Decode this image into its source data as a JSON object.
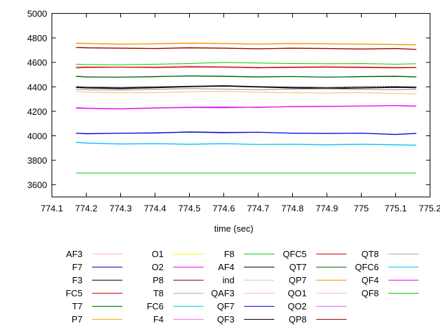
{
  "chart_data": {
    "type": "line",
    "title": "",
    "xlabel": "time (sec)",
    "ylabel": "",
    "xlim": [
      774.1,
      775.2
    ],
    "ylim": [
      3500,
      5000
    ],
    "grid": false,
    "legend_placement": "below",
    "x_ticks": [
      774.1,
      774.2,
      774.3,
      774.4,
      774.5,
      774.6,
      774.7,
      774.8,
      774.9,
      775,
      775.1,
      775.2
    ],
    "x_tick_labels": [
      "774.1",
      "774.2",
      "774.3",
      "774.4",
      "774.5",
      "774.6",
      "774.7",
      "774.8",
      "774.9",
      "775",
      "775.1",
      "775.2"
    ],
    "y_ticks": [
      3600,
      3800,
      4000,
      4200,
      4400,
      4600,
      4800,
      5000
    ],
    "y_tick_labels": [
      "3600",
      "3800",
      "4000",
      "4200",
      "4400",
      "4600",
      "4800",
      "5000"
    ],
    "x": [
      774.17,
      774.2,
      774.3,
      774.4,
      774.5,
      774.6,
      774.7,
      774.8,
      774.9,
      775.0,
      775.1,
      775.16
    ],
    "series": [
      {
        "name": "AF3",
        "color": "#ffb6b6",
        "values": [
          4570,
          4565,
          4560,
          4568,
          4572,
          4565,
          4560,
          4563,
          4570,
          4566,
          4562,
          4560
        ]
      },
      {
        "name": "F7",
        "color": "#0000b0",
        "values": [
          4020,
          4015,
          4020,
          4022,
          4030,
          4025,
          4028,
          4020,
          4018,
          4020,
          4010,
          4018
        ]
      },
      {
        "name": "F3",
        "color": "#000000",
        "values": [
          4395,
          4390,
          4385,
          4392,
          4400,
          4405,
          4398,
          4390,
          4385,
          4390,
          4395,
          4392
        ]
      },
      {
        "name": "FC5",
        "color": "#cc0000",
        "values": [
          4555,
          4558,
          4560,
          4556,
          4562,
          4560,
          4555,
          4558,
          4560,
          4557,
          4555,
          4556
        ]
      },
      {
        "name": "T7",
        "color": "#006400",
        "values": [
          4485,
          4480,
          4478,
          4482,
          4488,
          4485,
          4480,
          4483,
          4478,
          4482,
          4485,
          4480
        ]
      },
      {
        "name": "P7",
        "color": "#ffa500",
        "values": [
          4755,
          4752,
          4748,
          4750,
          4755,
          4752,
          4748,
          4752,
          4750,
          4748,
          4745,
          4742
        ]
      },
      {
        "name": "O1",
        "color": "#ffff00",
        "values": [
          4360,
          4355,
          4350,
          4352,
          4358,
          4362,
          4355,
          4350,
          4348,
          4352,
          4345,
          4340
        ]
      },
      {
        "name": "O2",
        "color": "#ee00ee",
        "values": [
          4230,
          4225,
          4220,
          4228,
          4232,
          4235,
          4230,
          4238,
          4240,
          4242,
          4245,
          4240
        ]
      },
      {
        "name": "P8",
        "color": "#8b0000",
        "values": [
          4720,
          4718,
          4715,
          4712,
          4718,
          4715,
          4710,
          4715,
          4712,
          4708,
          4712,
          4705
        ]
      },
      {
        "name": "T8",
        "color": "#b0b0b0",
        "values": [
          4380,
          4375,
          4372,
          4378,
          4385,
          4380,
          4375,
          4380,
          4382,
          4378,
          4375,
          4378
        ]
      },
      {
        "name": "FC6",
        "color": "#00cccc",
        "values": [
          3945,
          3940,
          3932,
          3935,
          3930,
          3935,
          3928,
          3930,
          3925,
          3930,
          3925,
          3922
        ]
      },
      {
        "name": "F4",
        "color": "#ff66ff",
        "values": [
          4225,
          4222,
          4218,
          4225,
          4230,
          4228,
          4232,
          4236,
          4238,
          4242,
          4245,
          4242
        ]
      },
      {
        "name": "F8",
        "color": "#00cc00",
        "values": [
          4585,
          4582,
          4580,
          4585,
          4590,
          4600,
          4595,
          4590,
          4588,
          4590,
          4585,
          4588
        ]
      },
      {
        "name": "AF4",
        "color": "#000000",
        "values": [
          4402,
          4398,
          4395,
          4400,
          4405,
          4410,
          4402,
          4398,
          4395,
          4400,
          4402,
          4400
        ]
      },
      {
        "name": "ind",
        "color": "#a0a0a0",
        "dashed": true,
        "values": [
          4402,
          4400,
          4398,
          4402,
          4406,
          4410,
          4404,
          4400,
          4398,
          4400,
          4403,
          4400
        ]
      },
      {
        "name": "QAF3",
        "color": "#ffb6c1",
        "values": [
          4568,
          4564,
          4560,
          4566,
          4570,
          4566,
          4562,
          4564,
          4568,
          4565,
          4562,
          4560
        ]
      },
      {
        "name": "QF7",
        "color": "#0000ff",
        "values": [
          4022,
          4018,
          4022,
          4025,
          4032,
          4028,
          4030,
          4022,
          4020,
          4022,
          4012,
          4020
        ]
      },
      {
        "name": "QF3",
        "color": "#000000",
        "values": [
          4398,
          4392,
          4388,
          4394,
          4402,
          4408,
          4400,
          4392,
          4388,
          4392,
          4398,
          4394
        ]
      },
      {
        "name": "QFC5",
        "color": "#cc0000",
        "values": [
          4557,
          4560,
          4562,
          4558,
          4564,
          4562,
          4557,
          4560,
          4562,
          4559,
          4557,
          4558
        ]
      },
      {
        "name": "QT7",
        "color": "#006400",
        "values": [
          4487,
          4482,
          4480,
          4484,
          4490,
          4487,
          4482,
          4485,
          4480,
          4484,
          4487,
          4482
        ]
      },
      {
        "name": "QP7",
        "color": "#ff8c00",
        "values": [
          4758,
          4755,
          4750,
          4752,
          4758,
          4755,
          4750,
          4755,
          4752,
          4750,
          4748,
          4745
        ]
      },
      {
        "name": "QO1",
        "color": "#ffb6c1",
        "values": [
          4362,
          4357,
          4352,
          4354,
          4360,
          4364,
          4357,
          4352,
          4350,
          4354,
          4347,
          4342
        ]
      },
      {
        "name": "QO2",
        "color": "#cc66ff",
        "values": [
          4232,
          4227,
          4222,
          4230,
          4234,
          4237,
          4232,
          4240,
          4242,
          4244,
          4247,
          4242
        ]
      },
      {
        "name": "QP8",
        "color": "#990000",
        "values": [
          4722,
          4720,
          4717,
          4714,
          4720,
          4717,
          4712,
          4717,
          4714,
          4710,
          4714,
          4707
        ]
      },
      {
        "name": "QT8",
        "color": "#a9a9a9",
        "values": [
          4382,
          4377,
          4374,
          4380,
          4387,
          4382,
          4377,
          4382,
          4384,
          4380,
          4377,
          4380
        ]
      },
      {
        "name": "QFC6",
        "color": "#00bfff",
        "values": [
          3947,
          3942,
          3934,
          3937,
          3932,
          3937,
          3930,
          3932,
          3927,
          3932,
          3927,
          3924
        ]
      },
      {
        "name": "QF4",
        "color": "#ee00ee",
        "values": [
          4227,
          4224,
          4220,
          4227,
          4232,
          4230,
          4234,
          4238,
          4240,
          4244,
          4247,
          4244
        ]
      },
      {
        "name": "QF8",
        "color": "#00cc00",
        "values": [
          3695,
          3695,
          3695,
          3695,
          3695,
          3695,
          3695,
          3695,
          3695,
          3695,
          3695,
          3695
        ]
      }
    ]
  }
}
